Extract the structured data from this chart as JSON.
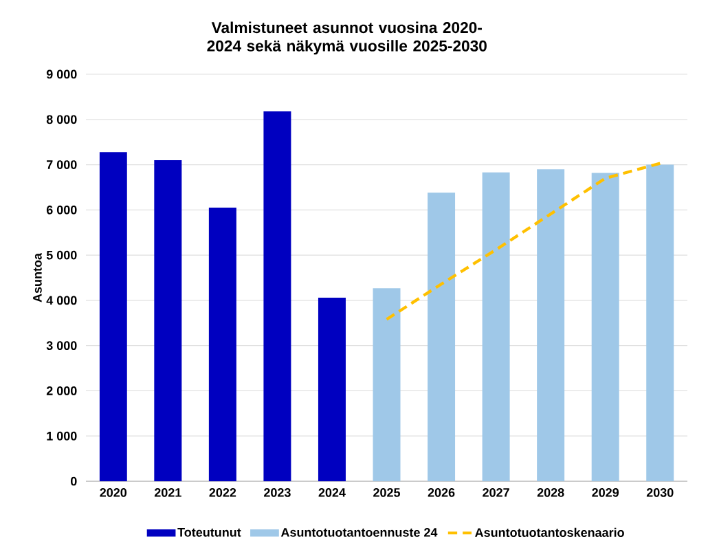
{
  "chart_data": {
    "type": "bar",
    "title": "Valmistuneet asunnot vuosina 2020-2024 sekä näkymä vuosille 2025-2030",
    "ylabel": "Asuntoa",
    "categories": [
      "2020",
      "2021",
      "2022",
      "2023",
      "2024",
      "2025",
      "2026",
      "2027",
      "2028",
      "2029",
      "2030"
    ],
    "series": [
      {
        "name": "Toteutunut",
        "color": "#0000c0",
        "values": [
          7280,
          7100,
          6050,
          8180,
          4060,
          null,
          null,
          null,
          null,
          null,
          null
        ]
      },
      {
        "name": "Asuntotuotantoennuste 24",
        "color": "#9fc8e8",
        "values": [
          null,
          null,
          null,
          null,
          null,
          4270,
          6380,
          6830,
          6900,
          6820,
          7000
        ]
      },
      {
        "name": "Asuntotuotantoskenaario",
        "type": "line",
        "color": "#ffc000",
        "line_style": "dashed",
        "values": [
          null,
          null,
          null,
          null,
          null,
          3580,
          4360,
          5120,
          5910,
          6700,
          7030
        ]
      }
    ],
    "ylim": [
      0,
      9000
    ],
    "yticks": [
      0,
      {
        "value": 1000,
        "label": "1 000"
      },
      {
        "value": 2000,
        "label": "2 000"
      },
      {
        "value": 3000,
        "label": "3 000"
      },
      {
        "value": 4000,
        "label": "4 000"
      },
      {
        "value": 5000,
        "label": "5 000"
      },
      {
        "value": 6000,
        "label": "6 000"
      },
      {
        "value": 7000,
        "label": "7 000"
      },
      {
        "value": 8000,
        "label": "8 000"
      },
      {
        "value": 9000,
        "label": "9 000"
      }
    ],
    "grid": "y",
    "legend": "bottom"
  }
}
